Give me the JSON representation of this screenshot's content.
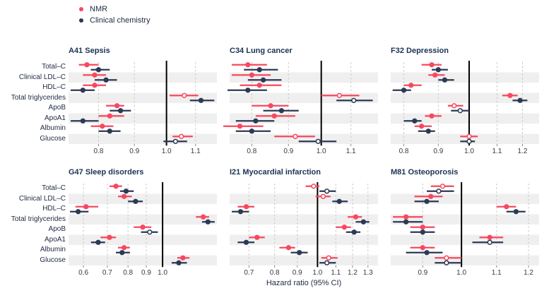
{
  "legend": {
    "items": [
      {
        "label": "NMR",
        "color": "#f8485e"
      },
      {
        "label": "Clinical chemistry",
        "color": "#2b3a55"
      }
    ]
  },
  "axis": {
    "title": "Hazard ratio (95% CI)"
  },
  "biomarkers": [
    "Total–C",
    "Clinical LDL–C",
    "HDL–C",
    "Total triglycerides",
    "ApoB",
    "ApoA1",
    "Albumin",
    "Glucose"
  ],
  "colors": {
    "nmr": "#f8485e",
    "clinical_chemistry": "#2b3a55",
    "row_stripe": "#efefef",
    "gridline": "#c6c6c6",
    "refline": "#000000",
    "title_text": "#1c3352",
    "tick_text": "#3a3a3a"
  },
  "chart_data": {
    "type": "scatter",
    "subtype": "forest-plot",
    "xlabel": "Hazard ratio (95% CI)",
    "xscale": "log",
    "legend_position": "top-left",
    "series_names": [
      "NMR",
      "Clinical chemistry"
    ],
    "categories": [
      "Total–C",
      "Clinical LDL–C",
      "HDL–C",
      "Total triglycerides",
      "ApoB",
      "ApoA1",
      "Albumin",
      "Glucose"
    ],
    "reference_line": 1.0,
    "panels": [
      {
        "title": "A41 Sepsis",
        "xdomain": [
          0.725,
          1.18
        ],
        "ticks": [
          0.8,
          0.9,
          1.0,
          1.1
        ],
        "rows": [
          {
            "biomarker": "Total–C",
            "nmr": {
              "hr": 0.77,
              "lo": 0.75,
              "hi": 0.8,
              "open": false
            },
            "cc": {
              "hr": 0.8,
              "lo": 0.78,
              "hi": 0.83,
              "open": false
            }
          },
          {
            "biomarker": "Clinical LDL–C",
            "nmr": {
              "hr": 0.79,
              "lo": 0.76,
              "hi": 0.82,
              "open": false
            },
            "cc": {
              "hr": 0.82,
              "lo": 0.79,
              "hi": 0.85,
              "open": false
            }
          },
          {
            "biomarker": "HDL–C",
            "nmr": {
              "hr": 0.79,
              "lo": 0.76,
              "hi": 0.82,
              "open": false
            },
            "cc": {
              "hr": 0.76,
              "lo": 0.73,
              "hi": 0.79,
              "open": false
            }
          },
          {
            "biomarker": "Total triglycerides",
            "nmr": {
              "hr": 1.06,
              "lo": 1.01,
              "hi": 1.11,
              "open": true
            },
            "cc": {
              "hr": 1.12,
              "lo": 1.08,
              "hi": 1.17,
              "open": false
            }
          },
          {
            "biomarker": "ApoB",
            "nmr": {
              "hr": 0.85,
              "lo": 0.82,
              "hi": 0.87,
              "open": false
            },
            "cc": {
              "hr": 0.86,
              "lo": 0.83,
              "hi": 0.89,
              "open": false
            }
          },
          {
            "biomarker": "ApoA1",
            "nmr": {
              "hr": 0.83,
              "lo": 0.8,
              "hi": 0.87,
              "open": false
            },
            "cc": {
              "hr": 0.76,
              "lo": 0.73,
              "hi": 0.8,
              "open": false
            }
          },
          {
            "biomarker": "Albumin",
            "nmr": {
              "hr": 0.81,
              "lo": 0.78,
              "hi": 0.84,
              "open": false
            },
            "cc": {
              "hr": 0.83,
              "lo": 0.8,
              "hi": 0.86,
              "open": false
            }
          },
          {
            "biomarker": "Glucose",
            "nmr": {
              "hr": 1.05,
              "lo": 1.02,
              "hi": 1.09,
              "open": true
            },
            "cc": {
              "hr": 1.03,
              "lo": 0.99,
              "hi": 1.07,
              "open": true
            }
          }
        ]
      },
      {
        "title": "C34 Lung cancer",
        "xdomain": [
          0.745,
          1.2
        ],
        "ticks": [
          0.8,
          0.9,
          1.0,
          1.1
        ],
        "rows": [
          {
            "biomarker": "Total–C",
            "nmr": {
              "hr": 0.79,
              "lo": 0.75,
              "hi": 0.84,
              "open": false
            },
            "cc": {
              "hr": 0.82,
              "lo": 0.78,
              "hi": 0.87,
              "open": false
            }
          },
          {
            "biomarker": "Clinical LDL–C",
            "nmr": {
              "hr": 0.8,
              "lo": 0.75,
              "hi": 0.85,
              "open": false
            },
            "cc": {
              "hr": 0.83,
              "lo": 0.79,
              "hi": 0.88,
              "open": false
            }
          },
          {
            "biomarker": "HDL–C",
            "nmr": {
              "hr": 0.82,
              "lo": 0.77,
              "hi": 0.88,
              "open": false
            },
            "cc": {
              "hr": 0.79,
              "lo": 0.74,
              "hi": 0.84,
              "open": false
            }
          },
          {
            "biomarker": "Total triglycerides",
            "nmr": {
              "hr": 1.06,
              "lo": 1.0,
              "hi": 1.13,
              "open": true
            },
            "cc": {
              "hr": 1.11,
              "lo": 1.05,
              "hi": 1.18,
              "open": true
            }
          },
          {
            "biomarker": "ApoB",
            "nmr": {
              "hr": 0.85,
              "lo": 0.8,
              "hi": 0.9,
              "open": false
            },
            "cc": {
              "hr": 0.88,
              "lo": 0.83,
              "hi": 0.93,
              "open": false
            }
          },
          {
            "biomarker": "ApoA1",
            "nmr": {
              "hr": 0.86,
              "lo": 0.81,
              "hi": 0.92,
              "open": false
            },
            "cc": {
              "hr": 0.81,
              "lo": 0.76,
              "hi": 0.86,
              "open": false
            }
          },
          {
            "biomarker": "Albumin",
            "nmr": {
              "hr": 0.77,
              "lo": 0.73,
              "hi": 0.83,
              "open": false
            },
            "cc": {
              "hr": 0.8,
              "lo": 0.76,
              "hi": 0.85,
              "open": false
            }
          },
          {
            "biomarker": "Glucose",
            "nmr": {
              "hr": 0.92,
              "lo": 0.86,
              "hi": 0.98,
              "open": true
            },
            "cc": {
              "hr": 0.99,
              "lo": 0.93,
              "hi": 1.05,
              "open": true
            }
          }
        ]
      },
      {
        "title": "F32 Depression",
        "xdomain": [
          0.765,
          1.27
        ],
        "ticks": [
          0.8,
          0.9,
          1.0,
          1.1,
          1.2
        ],
        "rows": [
          {
            "biomarker": "Total–C",
            "nmr": {
              "hr": 0.88,
              "lo": 0.85,
              "hi": 0.91,
              "open": false
            },
            "cc": {
              "hr": 0.9,
              "lo": 0.88,
              "hi": 0.93,
              "open": false
            }
          },
          {
            "biomarker": "Clinical LDL–C",
            "nmr": {
              "hr": 0.89,
              "lo": 0.87,
              "hi": 0.92,
              "open": false
            },
            "cc": {
              "hr": 0.92,
              "lo": 0.9,
              "hi": 0.95,
              "open": false
            }
          },
          {
            "biomarker": "HDL–C",
            "nmr": {
              "hr": 0.82,
              "lo": 0.8,
              "hi": 0.85,
              "open": false
            },
            "cc": {
              "hr": 0.8,
              "lo": 0.77,
              "hi": 0.82,
              "open": false
            }
          },
          {
            "biomarker": "Total triglycerides",
            "nmr": {
              "hr": 1.15,
              "lo": 1.12,
              "hi": 1.18,
              "open": false
            },
            "cc": {
              "hr": 1.19,
              "lo": 1.16,
              "hi": 1.22,
              "open": false
            }
          },
          {
            "biomarker": "ApoB",
            "nmr": {
              "hr": 0.95,
              "lo": 0.93,
              "hi": 0.98,
              "open": true
            },
            "cc": {
              "hr": 0.97,
              "lo": 0.94,
              "hi": 1.0,
              "open": true
            }
          },
          {
            "biomarker": "ApoA1",
            "nmr": {
              "hr": 0.88,
              "lo": 0.86,
              "hi": 0.91,
              "open": false
            },
            "cc": {
              "hr": 0.83,
              "lo": 0.8,
              "hi": 0.85,
              "open": false
            }
          },
          {
            "biomarker": "Albumin",
            "nmr": {
              "hr": 0.85,
              "lo": 0.83,
              "hi": 0.88,
              "open": false
            },
            "cc": {
              "hr": 0.87,
              "lo": 0.84,
              "hi": 0.89,
              "open": false
            }
          },
          {
            "biomarker": "Glucose",
            "nmr": {
              "hr": 1.0,
              "lo": 0.97,
              "hi": 1.03,
              "open": true
            },
            "cc": {
              "hr": 1.0,
              "lo": 0.97,
              "hi": 1.02,
              "open": true
            }
          }
        ]
      },
      {
        "title": "G47 Sleep disorders",
        "xdomain": [
          0.545,
          1.42
        ],
        "ticks": [
          0.6,
          0.7,
          0.8,
          0.9,
          1.0
        ],
        "rows": [
          {
            "biomarker": "Total–C",
            "nmr": {
              "hr": 0.74,
              "lo": 0.71,
              "hi": 0.77,
              "open": false
            },
            "cc": {
              "hr": 0.79,
              "lo": 0.76,
              "hi": 0.83,
              "open": false
            }
          },
          {
            "biomarker": "Clinical LDL–C",
            "nmr": {
              "hr": 0.78,
              "lo": 0.75,
              "hi": 0.82,
              "open": false
            },
            "cc": {
              "hr": 0.84,
              "lo": 0.8,
              "hi": 0.88,
              "open": false
            }
          },
          {
            "biomarker": "HDL–C",
            "nmr": {
              "hr": 0.61,
              "lo": 0.57,
              "hi": 0.66,
              "open": false
            },
            "cc": {
              "hr": 0.58,
              "lo": 0.55,
              "hi": 0.62,
              "open": false
            }
          },
          {
            "biomarker": "Total triglycerides",
            "nmr": {
              "hr": 1.3,
              "lo": 1.24,
              "hi": 1.35,
              "open": false
            },
            "cc": {
              "hr": 1.34,
              "lo": 1.29,
              "hi": 1.4,
              "open": false
            }
          },
          {
            "biomarker": "ApoB",
            "nmr": {
              "hr": 0.88,
              "lo": 0.83,
              "hi": 0.93,
              "open": false
            },
            "cc": {
              "hr": 0.92,
              "lo": 0.87,
              "hi": 0.97,
              "open": true
            }
          },
          {
            "biomarker": "ApoA1",
            "nmr": {
              "hr": 0.71,
              "lo": 0.67,
              "hi": 0.74,
              "open": false
            },
            "cc": {
              "hr": 0.66,
              "lo": 0.63,
              "hi": 0.69,
              "open": false
            }
          },
          {
            "biomarker": "Albumin",
            "nmr": {
              "hr": 0.78,
              "lo": 0.75,
              "hi": 0.81,
              "open": false
            },
            "cc": {
              "hr": 0.77,
              "lo": 0.74,
              "hi": 0.81,
              "open": false
            }
          },
          {
            "biomarker": "Glucose",
            "nmr": {
              "hr": 1.14,
              "lo": 1.1,
              "hi": 1.19,
              "open": false
            },
            "cc": {
              "hr": 1.11,
              "lo": 1.06,
              "hi": 1.17,
              "open": false
            }
          }
        ]
      },
      {
        "title": "I21 Myocardial infarction",
        "xdomain": [
          0.633,
          1.37
        ],
        "ticks": [
          0.7,
          0.8,
          0.9,
          1.0,
          1.1,
          1.2,
          1.3
        ],
        "rows": [
          {
            "biomarker": "Total–C",
            "nmr": {
              "hr": 0.98,
              "lo": 0.94,
              "hi": 1.01,
              "open": true
            },
            "cc": {
              "hr": 1.05,
              "lo": 1.01,
              "hi": 1.1,
              "open": true
            }
          },
          {
            "biomarker": "Clinical LDL–C",
            "nmr": {
              "hr": 1.03,
              "lo": 0.99,
              "hi": 1.07,
              "open": true
            },
            "cc": {
              "hr": 1.12,
              "lo": 1.08,
              "hi": 1.17,
              "open": false
            }
          },
          {
            "biomarker": "HDL–C",
            "nmr": {
              "hr": 0.69,
              "lo": 0.66,
              "hi": 0.72,
              "open": false
            },
            "cc": {
              "hr": 0.67,
              "lo": 0.64,
              "hi": 0.7,
              "open": false
            }
          },
          {
            "biomarker": "Total triglycerides",
            "nmr": {
              "hr": 1.22,
              "lo": 1.17,
              "hi": 1.26,
              "open": false
            },
            "cc": {
              "hr": 1.27,
              "lo": 1.22,
              "hi": 1.31,
              "open": false
            }
          },
          {
            "biomarker": "ApoB",
            "nmr": {
              "hr": 1.15,
              "lo": 1.1,
              "hi": 1.19,
              "open": false
            },
            "cc": {
              "hr": 1.21,
              "lo": 1.16,
              "hi": 1.25,
              "open": false
            }
          },
          {
            "biomarker": "ApoA1",
            "nmr": {
              "hr": 0.73,
              "lo": 0.7,
              "hi": 0.76,
              "open": false
            },
            "cc": {
              "hr": 0.69,
              "lo": 0.66,
              "hi": 0.72,
              "open": false
            }
          },
          {
            "biomarker": "Albumin",
            "nmr": {
              "hr": 0.86,
              "lo": 0.82,
              "hi": 0.89,
              "open": false
            },
            "cc": {
              "hr": 0.91,
              "lo": 0.87,
              "hi": 0.95,
              "open": false
            }
          },
          {
            "biomarker": "Glucose",
            "nmr": {
              "hr": 1.06,
              "lo": 1.02,
              "hi": 1.11,
              "open": true
            },
            "cc": {
              "hr": 1.05,
              "lo": 1.01,
              "hi": 1.1,
              "open": true
            }
          }
        ]
      },
      {
        "title": "M81 Osteoporosis",
        "xdomain": [
          0.825,
          1.235
        ],
        "ticks": [
          0.9,
          1.0,
          1.1,
          1.2
        ],
        "rows": [
          {
            "biomarker": "Total–C",
            "nmr": {
              "hr": 0.95,
              "lo": 0.92,
              "hi": 0.98,
              "open": true
            },
            "cc": {
              "hr": 0.94,
              "lo": 0.91,
              "hi": 0.98,
              "open": true
            }
          },
          {
            "biomarker": "Clinical LDL–C",
            "nmr": {
              "hr": 0.92,
              "lo": 0.88,
              "hi": 0.95,
              "open": false
            },
            "cc": {
              "hr": 0.91,
              "lo": 0.88,
              "hi": 0.94,
              "open": false
            }
          },
          {
            "biomarker": "HDL–C",
            "nmr": {
              "hr": 1.13,
              "lo": 1.1,
              "hi": 1.16,
              "open": false
            },
            "cc": {
              "hr": 1.16,
              "lo": 1.13,
              "hi": 1.19,
              "open": false
            }
          },
          {
            "biomarker": "Total triglycerides",
            "nmr": {
              "hr": 0.86,
              "lo": 0.83,
              "hi": 0.9,
              "open": false
            },
            "cc": {
              "hr": 0.86,
              "lo": 0.83,
              "hi": 0.9,
              "open": false
            }
          },
          {
            "biomarker": "ApoB",
            "nmr": {
              "hr": 0.9,
              "lo": 0.87,
              "hi": 0.93,
              "open": false
            },
            "cc": {
              "hr": 0.9,
              "lo": 0.87,
              "hi": 0.93,
              "open": false
            }
          },
          {
            "biomarker": "ApoA1",
            "nmr": {
              "hr": 1.08,
              "lo": 1.05,
              "hi": 1.12,
              "open": false
            },
            "cc": {
              "hr": 1.08,
              "lo": 1.03,
              "hi": 1.12,
              "open": true
            }
          },
          {
            "biomarker": "Albumin",
            "nmr": {
              "hr": 0.9,
              "lo": 0.87,
              "hi": 0.93,
              "open": false
            },
            "cc": {
              "hr": 0.91,
              "lo": 0.86,
              "hi": 0.95,
              "open": false
            }
          },
          {
            "biomarker": "Glucose",
            "nmr": {
              "hr": 0.96,
              "lo": 0.93,
              "hi": 1.0,
              "open": true
            },
            "cc": {
              "hr": 0.96,
              "lo": 0.93,
              "hi": 1.0,
              "open": true
            }
          }
        ]
      }
    ]
  }
}
